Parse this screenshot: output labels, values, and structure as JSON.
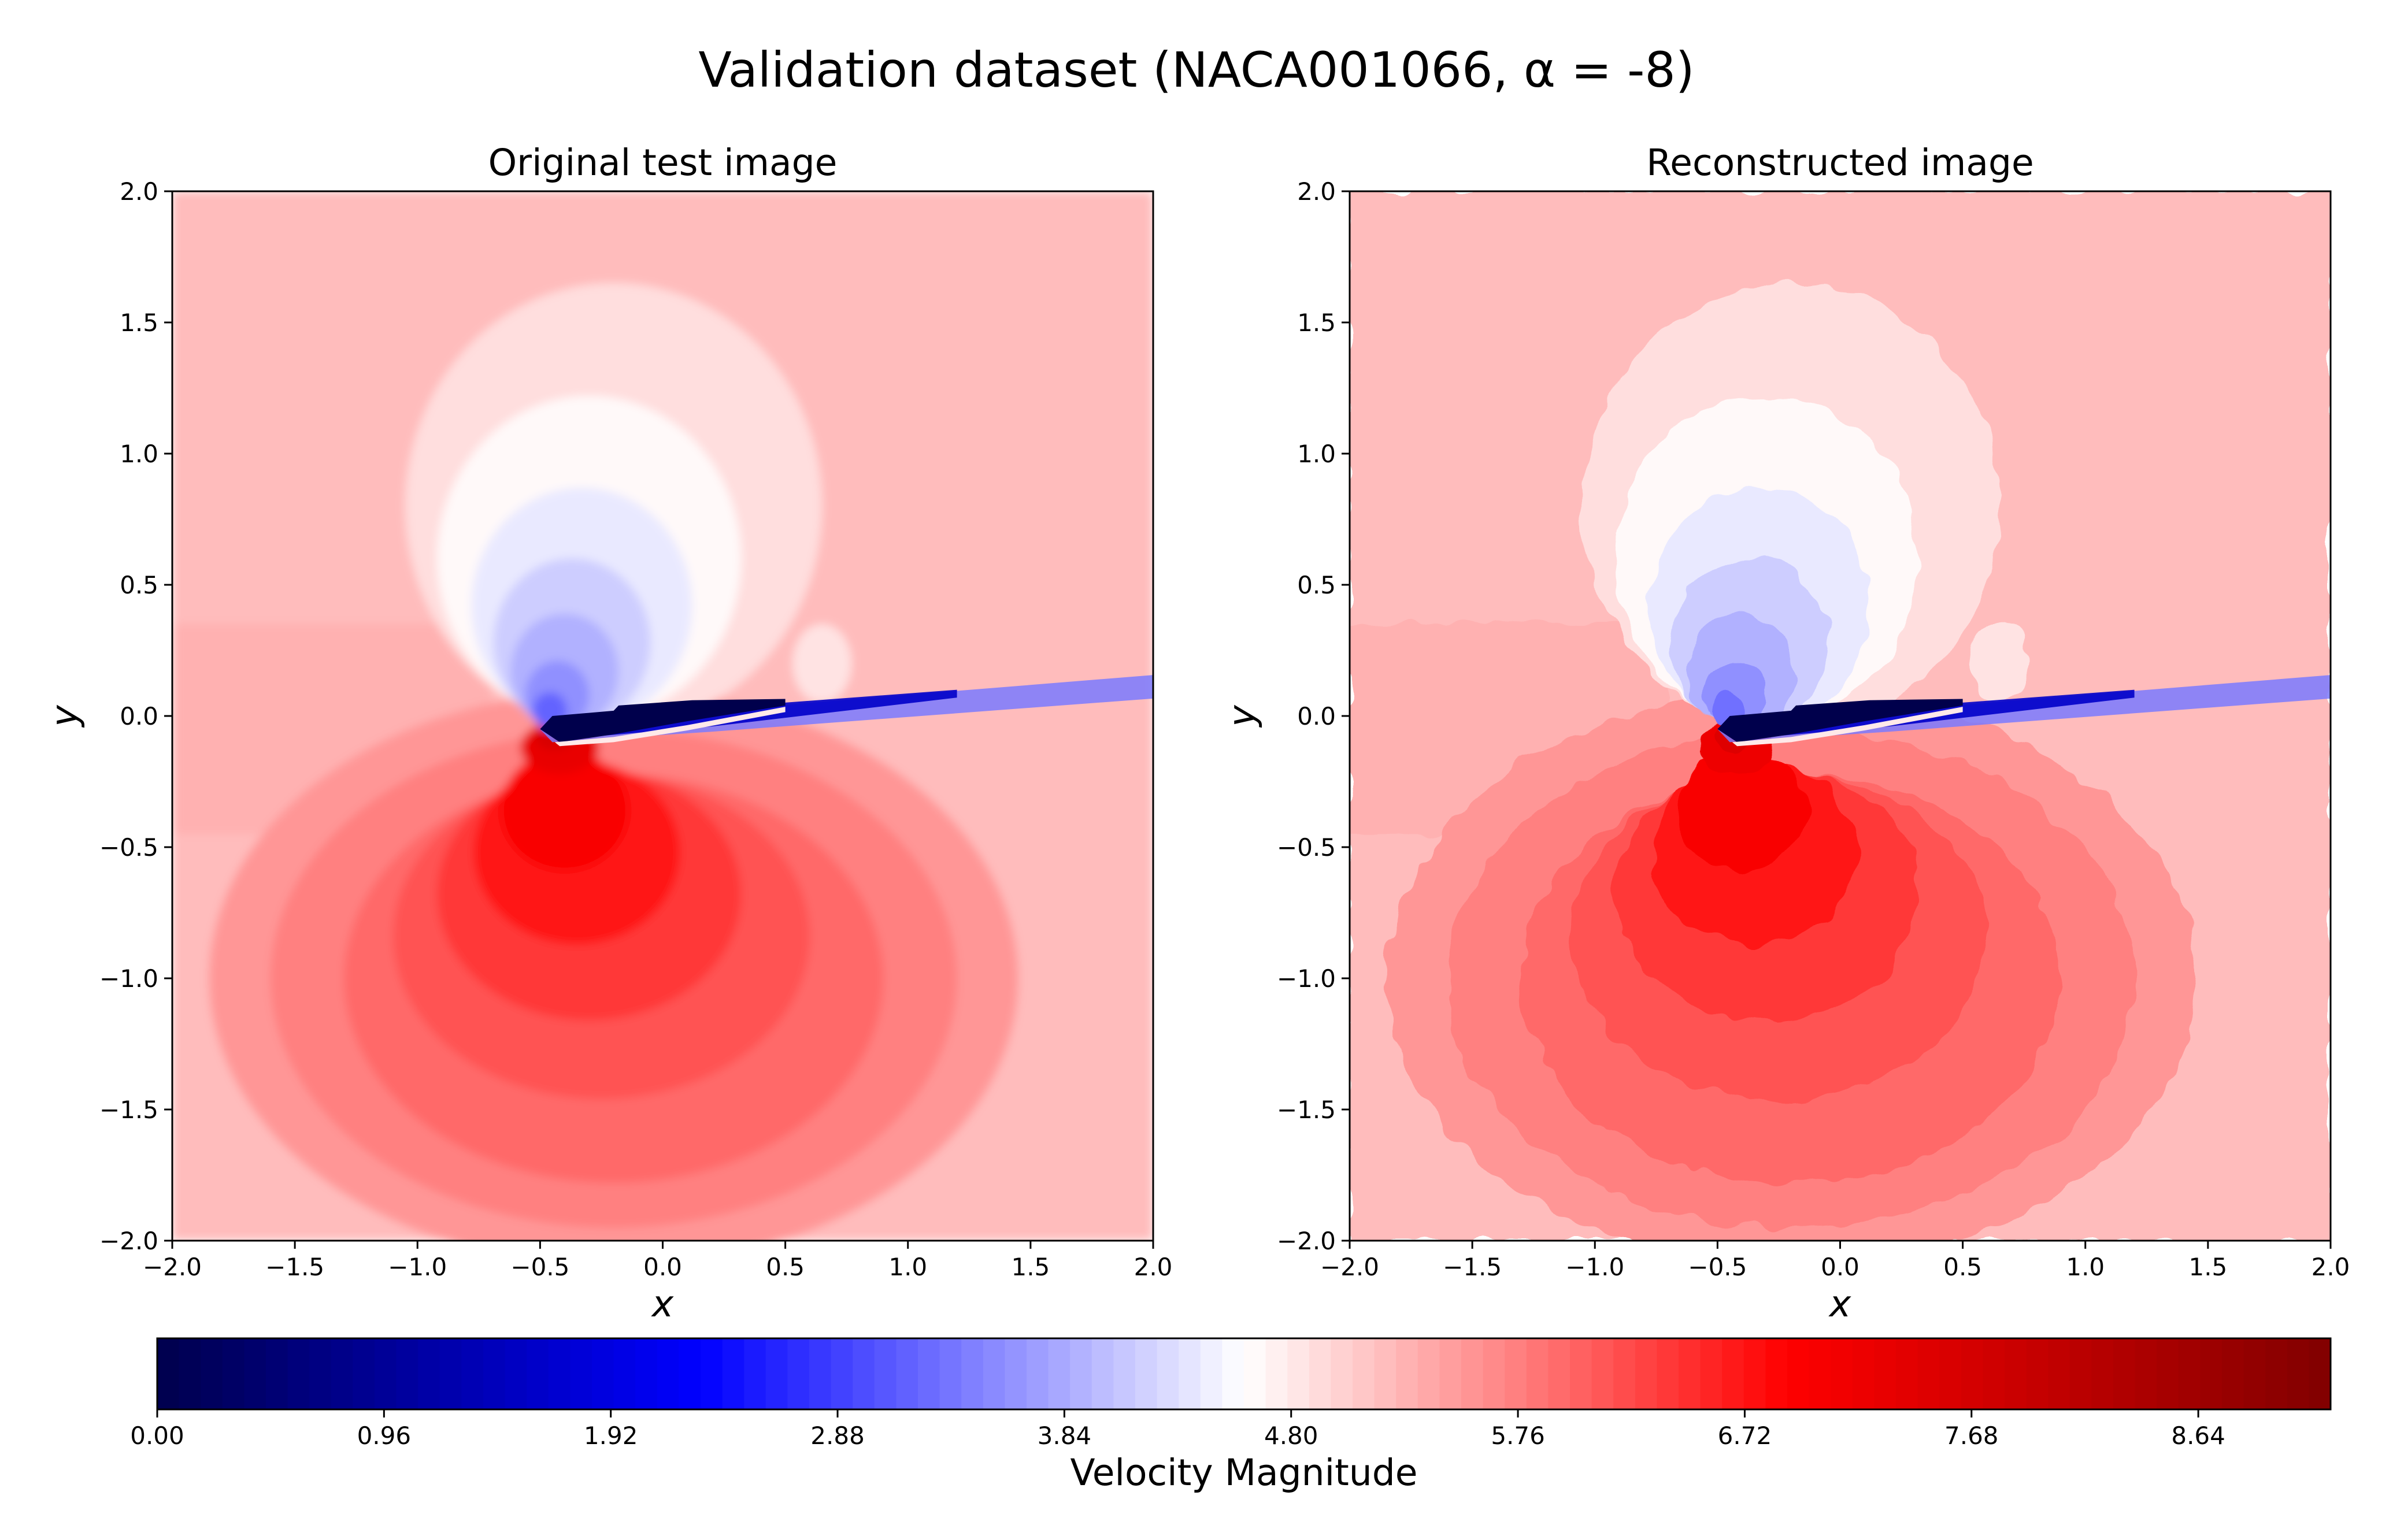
{
  "figure": {
    "title": "Validation dataset (NACA001066, α = -8)"
  },
  "chart_data": [
    {
      "type": "heatmap",
      "title": "Original test image",
      "xlabel": "x",
      "ylabel": "y",
      "xlim": [
        -2.0,
        2.0
      ],
      "ylim": [
        -2.0,
        2.0
      ],
      "x_ticks": [
        "−2.0",
        "−1.5",
        "−1.0",
        "−0.5",
        "0.0",
        "0.5",
        "1.0",
        "1.5",
        "2.0"
      ],
      "y_ticks": [
        "−2.0",
        "−1.5",
        "−1.0",
        "−0.5",
        "0.0",
        "0.5",
        "1.0",
        "1.5",
        "2.0"
      ],
      "grid": false,
      "field": {
        "freestream_value": 5.0,
        "leading_edge": [
          -0.5,
          -0.05
        ],
        "low_speed_core_value": 0.0,
        "low_speed_core_min_value_upper_lobe": 3.2,
        "max_value_lower_lobe": 7.6
      }
    },
    {
      "type": "heatmap",
      "title": "Reconstructed image",
      "xlabel": "x",
      "ylabel": "y",
      "xlim": [
        -2.0,
        2.0
      ],
      "ylim": [
        -2.0,
        2.0
      ],
      "x_ticks": [
        "−2.0",
        "−1.5",
        "−1.0",
        "−0.5",
        "0.0",
        "0.5",
        "1.0",
        "1.5",
        "2.0"
      ],
      "y_ticks": [
        "−2.0",
        "−1.5",
        "−1.0",
        "−0.5",
        "0.0",
        "0.5",
        "1.0",
        "1.5",
        "2.0"
      ],
      "grid": false,
      "field": {
        "freestream_value": 5.0,
        "leading_edge": [
          -0.5,
          -0.05
        ],
        "low_speed_core_value": 0.0,
        "low_speed_core_min_value_upper_lobe": 3.3,
        "max_value_lower_lobe": 7.5
      }
    }
  ],
  "colorbar": {
    "label": "Velocity Magnitude",
    "orientation": "horizontal",
    "colormap": "seismic",
    "vmin": 0.0,
    "vmax": 9.2,
    "levels": 100,
    "ticks": [
      "0.00",
      "0.96",
      "1.92",
      "2.88",
      "3.84",
      "4.80",
      "5.76",
      "6.72",
      "7.68",
      "8.64"
    ],
    "tick_values": [
      0.0,
      0.96,
      1.92,
      2.88,
      3.84,
      4.8,
      5.76,
      6.72,
      7.68,
      8.64
    ],
    "colors": {
      "low": "#00004c",
      "blue": "#0000ff",
      "mid": "#ffffff",
      "red": "#ff0000",
      "high": "#800000"
    }
  }
}
